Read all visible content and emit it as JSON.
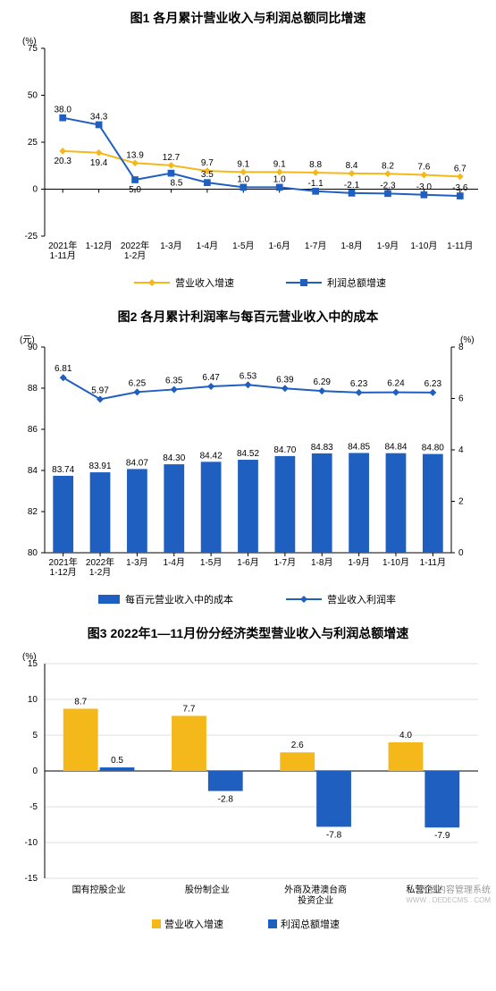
{
  "chart1": {
    "type": "line",
    "title": "图1  各月累计营业收入与利润总额同比增速",
    "title_fontsize": 14,
    "y_unit_label": "(%)",
    "ylim": [
      -25,
      75
    ],
    "yticks": [
      -25,
      0,
      25,
      50,
      75
    ],
    "categories": [
      "2021年\n1-11月",
      "1-12月",
      "2022年\n1-2月",
      "1-3月",
      "1-4月",
      "1-5月",
      "1-6月",
      "1-7月",
      "1-8月",
      "1-9月",
      "1-10月",
      "1-11月"
    ],
    "series": [
      {
        "name": "营业收入增速",
        "color": "#f5b81a",
        "marker": "diamond",
        "marker_size": 5,
        "line_width": 2,
        "values": [
          20.3,
          19.4,
          13.9,
          12.7,
          9.7,
          9.1,
          9.1,
          8.8,
          8.4,
          8.2,
          7.6,
          6.7
        ]
      },
      {
        "name": "利润总额增速",
        "color": "#1f5fbf",
        "marker": "square",
        "marker_size": 5,
        "line_width": 2,
        "values": [
          38.0,
          34.3,
          5.0,
          8.5,
          3.5,
          1.0,
          1.0,
          -1.1,
          -2.1,
          -2.3,
          -3.0,
          -3.6
        ]
      }
    ],
    "axis_color": "#000000",
    "grid": false,
    "background": "#ffffff",
    "label_fontsize": 10
  },
  "chart2": {
    "type": "bar+line",
    "title": "图2  各月累计利润率与每百元营业收入中的成本",
    "title_fontsize": 14,
    "left_unit_label": "(元)",
    "right_unit_label": "(%)",
    "left_ylim": [
      80,
      90
    ],
    "left_yticks": [
      80,
      82,
      84,
      86,
      88,
      90
    ],
    "right_ylim": [
      0,
      8
    ],
    "right_yticks": [
      0,
      2,
      4,
      6,
      8
    ],
    "categories": [
      "2021年\n1-12月",
      "2022年\n1-2月",
      "1-3月",
      "1-4月",
      "1-5月",
      "1-6月",
      "1-7月",
      "1-8月",
      "1-9月",
      "1-10月",
      "1-11月"
    ],
    "bar_series": {
      "name": "每百元营业收入中的成本",
      "color": "#1f5fbf",
      "values": [
        83.74,
        83.91,
        84.07,
        84.3,
        84.42,
        84.52,
        84.7,
        84.83,
        84.85,
        84.84,
        84.8
      ],
      "bar_width": 0.55
    },
    "line_series": {
      "name": "营业收入利润率",
      "color": "#1f5fbf",
      "marker": "diamond",
      "marker_size": 5,
      "line_width": 2,
      "values": [
        6.81,
        5.97,
        6.25,
        6.35,
        6.47,
        6.53,
        6.39,
        6.29,
        6.23,
        6.24,
        6.23
      ]
    },
    "axis_color": "#000000",
    "background": "#ffffff",
    "label_fontsize": 10
  },
  "chart3": {
    "type": "grouped-bar",
    "title": "图3  2022年1—11月份分经济类型营业收入与利润总额增速",
    "title_fontsize": 14,
    "y_unit_label": "(%)",
    "ylim": [
      -15,
      15
    ],
    "yticks": [
      -15,
      -10,
      -5,
      0,
      5,
      10,
      15
    ],
    "categories": [
      "国有控股企业",
      "股份制企业",
      "外商及港澳台商\n投资企业",
      "私营企业"
    ],
    "series": [
      {
        "name": "营业收入增速",
        "color": "#f5b81a",
        "values": [
          8.7,
          7.7,
          2.6,
          4.0
        ]
      },
      {
        "name": "利润总额增速",
        "color": "#1f5fbf",
        "values": [
          0.5,
          -2.8,
          -7.8,
          -7.9
        ]
      }
    ],
    "grid_color": "#bfbfbf",
    "axis_color": "#000000",
    "background": "#ffffff",
    "bar_width": 0.32,
    "label_fontsize": 10
  },
  "watermark": {
    "line1": "织梦内容管理系统",
    "line2": "WWW . DEDECMS . COM"
  }
}
